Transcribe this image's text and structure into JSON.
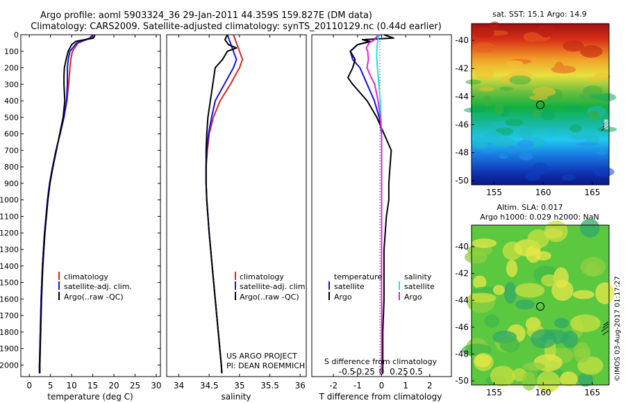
{
  "header": {
    "title": "Argo profile: aoml 5903324_36 29-Jan-2011 44.359S 159.827E (DM data)",
    "subtitle": "Climatology: CARS2009. Satellite-adjusted climatology: synTS_20110129.nc (0.44d earlier)"
  },
  "credits": {
    "project": "US ARGO PROJECT",
    "pi": "PI: DEAN ROEMMICH",
    "stamp": "©IMOS 03-Aug-2017 01:17:27"
  },
  "colors": {
    "climatology": "#e02020",
    "satellite": "#1010e0",
    "argo": "#000000",
    "salinity_satellite": "#20e0e0",
    "salinity_argo": "#e020e0"
  },
  "chart_data": [
    {
      "type": "line",
      "xlabel": "temperature (deg C)",
      "xlim": [
        -2,
        31
      ],
      "ylim": [
        2070,
        0
      ],
      "xticks": [
        0,
        5,
        10,
        15,
        20,
        25,
        30
      ],
      "yticks": [
        0,
        100,
        200,
        300,
        400,
        500,
        600,
        700,
        800,
        900,
        1000,
        1100,
        1200,
        1300,
        1400,
        1500,
        1600,
        1700,
        1800,
        1900,
        2000
      ],
      "legend": [
        "climatology",
        "satellite-adj. clim.",
        "Argo(..raw -QC)"
      ],
      "series": [
        {
          "name": "climatology",
          "color": "#e02020",
          "depth": [
            0,
            20,
            50,
            100,
            150,
            200,
            300,
            400,
            500,
            600,
            700,
            800,
            900,
            1000,
            1200,
            1400,
            1600,
            1800,
            2000,
            2050
          ],
          "values": [
            15.2,
            14.5,
            11.5,
            10.2,
            9.8,
            9.6,
            9.3,
            8.9,
            8.2,
            7.3,
            6.3,
            5.5,
            4.8,
            4.3,
            3.6,
            3.1,
            2.8,
            2.6,
            2.4,
            2.4
          ]
        },
        {
          "name": "satellite-adj. clim.",
          "color": "#1010e0",
          "depth": [
            0,
            20,
            50,
            100,
            150,
            200,
            300,
            400,
            500,
            600,
            700,
            800,
            900,
            1000,
            1200,
            1400,
            1600,
            1800,
            2000,
            2050
          ],
          "values": [
            15.0,
            14.3,
            11.2,
            9.6,
            9.2,
            9.0,
            9.0,
            8.8,
            8.2,
            7.3,
            6.3,
            5.5,
            4.8,
            4.3,
            3.6,
            3.1,
            2.8,
            2.6,
            2.4,
            2.4
          ]
        },
        {
          "name": "Argo(..raw -QC)",
          "color": "#000000",
          "depth": [
            0,
            20,
            40,
            60,
            100,
            150,
            200,
            250,
            300,
            400,
            500,
            600,
            700,
            800,
            900,
            1000,
            1200,
            1400,
            1600,
            1800,
            2000,
            2050
          ],
          "values": [
            15.5,
            15.2,
            11.0,
            10.0,
            9.2,
            8.7,
            8.3,
            8.2,
            8.2,
            8.4,
            8.0,
            7.2,
            6.4,
            5.6,
            4.9,
            4.4,
            3.7,
            3.2,
            2.9,
            2.7,
            2.5,
            2.5
          ]
        }
      ]
    },
    {
      "type": "line",
      "xlabel": "salinity",
      "xlim": [
        33.8,
        36.1
      ],
      "ylim": [
        2070,
        0
      ],
      "xticks": [
        34,
        34.5,
        35,
        35.5,
        36
      ],
      "legend": [
        "climatology",
        "satellite-adj. clim.",
        "Argo(..raw -QC)"
      ],
      "series": [
        {
          "name": "climatology",
          "color": "#e02020",
          "depth": [
            0,
            50,
            100,
            150,
            200,
            300,
            400,
            500,
            600,
            700,
            800,
            900,
            1000,
            1200,
            1400,
            1600,
            1800,
            2000,
            2050
          ],
          "values": [
            34.9,
            34.95,
            35.0,
            35.05,
            35.0,
            34.85,
            34.68,
            34.57,
            34.5,
            34.47,
            34.45,
            34.45,
            34.46,
            34.5,
            34.55,
            34.6,
            34.65,
            34.7,
            34.71
          ]
        },
        {
          "name": "satellite-adj. clim.",
          "color": "#1010e0",
          "depth": [
            0,
            50,
            100,
            150,
            200,
            300,
            400,
            500,
            600,
            700,
            800,
            900,
            1000,
            1200,
            1400,
            1600,
            1800,
            2000,
            2050
          ],
          "values": [
            34.8,
            34.85,
            34.9,
            34.95,
            34.9,
            34.75,
            34.6,
            34.54,
            34.49,
            34.46,
            34.45,
            34.45,
            34.46,
            34.5,
            34.55,
            34.6,
            34.65,
            34.7,
            34.71
          ]
        },
        {
          "name": "Argo(..raw -QC)",
          "color": "#000000",
          "depth": [
            0,
            30,
            60,
            80,
            100,
            150,
            200,
            300,
            400,
            500,
            600,
            700,
            800,
            900,
            1000,
            1200,
            1400,
            1600,
            1800,
            2000,
            2050
          ],
          "values": [
            34.8,
            34.76,
            34.82,
            34.95,
            34.8,
            34.72,
            34.6,
            34.56,
            34.52,
            34.48,
            34.46,
            34.45,
            34.45,
            34.45,
            34.46,
            34.5,
            34.55,
            34.6,
            34.65,
            34.7,
            34.71
          ]
        }
      ]
    },
    {
      "type": "line",
      "xlabel": "T difference from climatology",
      "x2label": "S difference from climatology",
      "xlim": [
        -2.9,
        2.9
      ],
      "ylim": [
        2070,
        0
      ],
      "xticks": [
        -2,
        -1,
        0,
        1,
        2
      ],
      "x2ticks": [
        -0.5,
        -0.25,
        0,
        0.25,
        0.5
      ],
      "x2tick_labels": [
        "-0.5",
        "-0.25",
        "0",
        "0.25",
        "0.5"
      ],
      "legend_headings": [
        "temperature",
        "salinity"
      ],
      "legend": [
        "satellite",
        "Argo",
        "satellite",
        "Argo"
      ],
      "series": [
        {
          "name": "satellite",
          "quantity": "temperature",
          "color": "#1010e0",
          "depth": [
            0,
            40,
            60,
            100,
            150,
            200,
            300,
            400,
            500,
            600,
            700,
            800,
            1000,
            1200,
            1400,
            1600,
            1800,
            2000,
            2050
          ],
          "values": [
            -0.1,
            -0.4,
            -1.0,
            -1.3,
            -1.2,
            -0.9,
            -0.6,
            -0.3,
            -0.1,
            0.0,
            0.0,
            0.0,
            0.0,
            0.0,
            0.0,
            0.0,
            0.0,
            0.0,
            0.0
          ]
        },
        {
          "name": "Argo",
          "quantity": "temperature",
          "color": "#000000",
          "depth": [
            0,
            20,
            30,
            40,
            60,
            100,
            150,
            200,
            260,
            300,
            400,
            500,
            600,
            700,
            800,
            900,
            1000,
            1100,
            1200,
            1300,
            1400,
            1600,
            1800,
            2000,
            2050
          ],
          "values": [
            0.1,
            0.5,
            -0.8,
            -0.5,
            -1.0,
            -1.3,
            -1.1,
            -1.2,
            -1.4,
            -1.2,
            -0.6,
            -0.2,
            0.1,
            0.4,
            0.35,
            0.3,
            0.3,
            0.2,
            0.15,
            0.1,
            0.1,
            0.1,
            0.05,
            0.05,
            0.05
          ]
        },
        {
          "name": "satellite",
          "quantity": "salinity",
          "color": "#20e0e0",
          "depth": [
            0,
            50,
            100,
            150,
            200,
            300,
            400,
            500,
            600,
            700,
            800,
            1000,
            1200,
            1400,
            1600,
            1800,
            2000,
            2050
          ],
          "values": [
            -0.04,
            -0.06,
            -0.07,
            -0.07,
            -0.06,
            -0.04,
            -0.02,
            -0.01,
            0.0,
            0.0,
            0.0,
            0.0,
            0.0,
            0.0,
            0.0,
            0.0,
            0.0,
            0.0
          ]
        },
        {
          "name": "Argo",
          "quantity": "salinity",
          "color": "#e020e0",
          "depth": [
            0,
            30,
            50,
            80,
            100,
            150,
            200,
            250,
            300,
            400,
            500,
            600,
            800,
            1000,
            1200,
            1400,
            1600,
            1800,
            2000,
            2050
          ],
          "values": [
            -0.05,
            -0.1,
            -0.18,
            -0.22,
            -0.2,
            -0.19,
            -0.21,
            -0.16,
            -0.1,
            -0.05,
            -0.02,
            0.0,
            0.0,
            0.0,
            0.0,
            0.0,
            0.0,
            0.0,
            0.0,
            0.0
          ]
        }
      ]
    }
  ],
  "maps": [
    {
      "title": "sat. SST: 15.1  Argo: 14.9",
      "lon_ticks": [
        155,
        160,
        165
      ],
      "lat_ticks": [
        -40,
        -42,
        -44,
        -46,
        -48,
        -50
      ],
      "lon_range": [
        152.7,
        166.7
      ],
      "lat_range": [
        -38.8,
        -50.3
      ],
      "marker": {
        "lon": 159.827,
        "lat": -44.359
      }
    },
    {
      "title": "Altim. SLA: 0.017",
      "subtitle": "Argo h1000: 0.029 h2000: NaN",
      "lon_ticks": [
        155,
        160,
        165
      ],
      "lat_ticks": [
        -40,
        -42,
        -44,
        -46,
        -48,
        -50
      ],
      "lon_range": [
        152.7,
        166.7
      ],
      "lat_range": [
        -38.4,
        -50.3
      ],
      "marker": {
        "lon": 159.827,
        "lat": -44.359
      }
    }
  ]
}
